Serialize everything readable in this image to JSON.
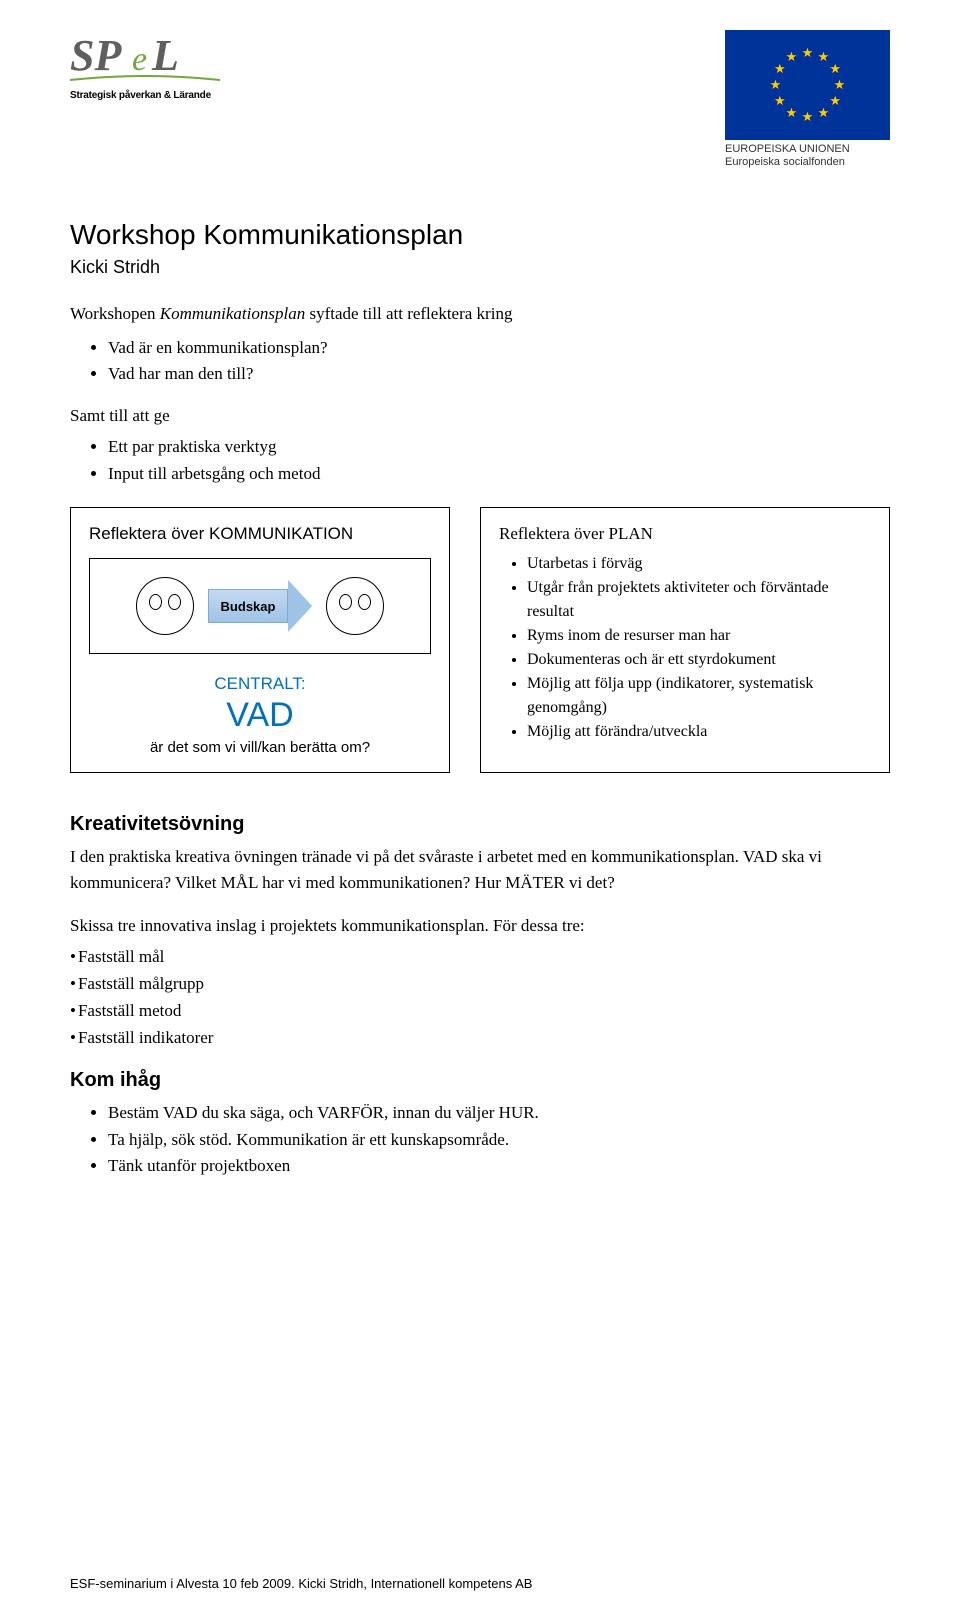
{
  "header": {
    "spel_tagline": "Strategisk påverkan & Lärande",
    "eu_line1": "EUROPEISKA UNIONEN",
    "eu_line2": "Europeiska socialfonden"
  },
  "title": "Workshop Kommunikationsplan",
  "subtitle": "Kicki Stridh",
  "intro_prefix": "Workshopen ",
  "intro_italic": "Kommunikationsplan",
  "intro_suffix": " syftade till att reflektera kring",
  "intro_bullets": [
    "Vad är en kommunikationsplan?",
    "Vad har man den till?"
  ],
  "leadin": "Samt till att ge",
  "leadin_bullets": [
    "Ett par praktiska verktyg",
    "Input till arbetsgång och metod"
  ],
  "box_left": {
    "title": "Reflektera över  KOMMUNIKATION",
    "arrow_label": "Budskap",
    "centralt": "CENTRALT:",
    "vad": "VAD",
    "sub": "är det som vi vill/kan berätta om?"
  },
  "box_right": {
    "title": "Reflektera över PLAN",
    "items": [
      "Utarbetas i förväg",
      "Utgår från projektets aktiviteter och förväntade resultat",
      "Ryms inom de resurser man har",
      "Dokumenteras och är ett styrdokument",
      "Möjlig att följa upp (indikatorer, systematisk genomgång)",
      "Möjlig att förändra/utveckla"
    ]
  },
  "section2_title": "Kreativitetsövning",
  "section2_para": "I den praktiska kreativa övningen tränade vi på det svåraste i arbetet med en kommunikationsplan. VAD ska vi kommunicera? Vilket MÅL har vi med kommunikationen? Hur MÄTER vi det?",
  "section2_para2": "Skissa tre innovativa inslag i projektets kommunikationsplan. För dessa tre:",
  "section2_list": [
    "Fastställ mål",
    "Fastställ målgrupp",
    "Fastställ metod",
    "Fastställ indikatorer"
  ],
  "section3_title": "Kom ihåg",
  "section3_items": [
    "Bestäm VAD du ska säga, och VARFÖR, innan du väljer HUR.",
    "Ta hjälp, sök stöd. Kommunikation är ett kunskapsområde.",
    "Tänk utanför projektboxen"
  ],
  "footer": "ESF-seminarium i Alvesta 10 feb 2009. Kicki Stridh, Internationell kompetens AB",
  "colors": {
    "eu_blue": "#003399",
    "eu_gold": "#ffcc00",
    "accent_blue": "#0070c0",
    "arrow_fill_top": "#c5d9f1",
    "arrow_fill_bottom": "#9ec3e6",
    "spel_green": "#6fa83f",
    "spel_grey": "#5f5f5f"
  }
}
